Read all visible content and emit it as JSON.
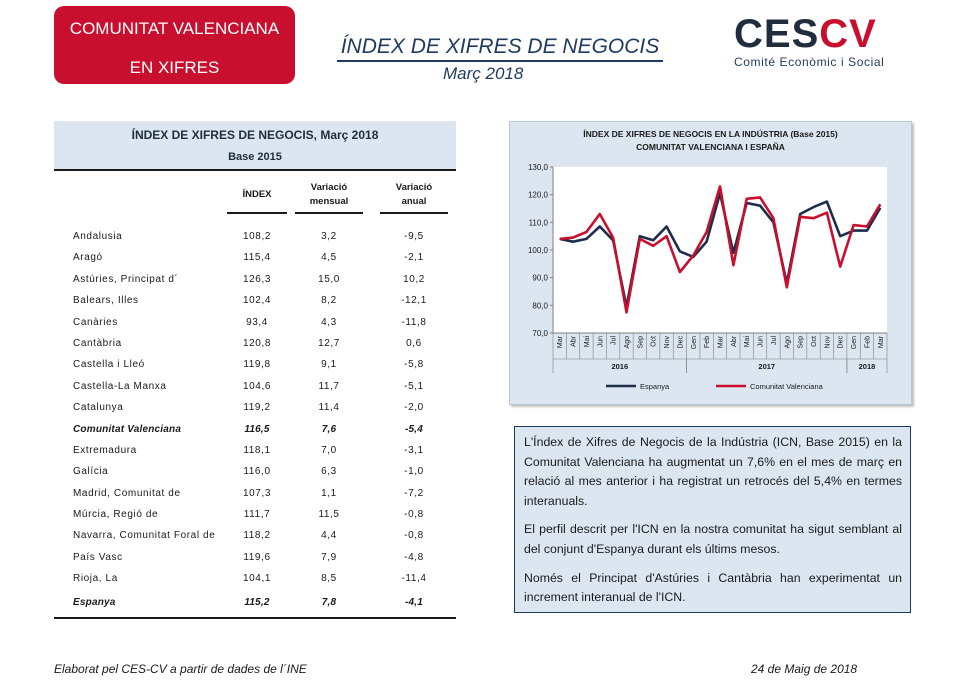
{
  "header": {
    "badge_line1": "COMUNITAT VALENCIANA",
    "badge_line2": "EN XIFRES",
    "title": "ÍNDEX DE XIFRES DE NEGOCIS",
    "subtitle": "Març 2018",
    "logo_ces": "CES",
    "logo_cv": "CV",
    "logo_sub": "Comité Econòmic i Social"
  },
  "table": {
    "title": "ÍNDEX DE XIFRES DE NEGOCIS, Març 2018",
    "base": "Base 2015",
    "col1": "ÍNDEX",
    "col2_a": "Variació",
    "col2_b": "mensual",
    "col3_a": "Variació",
    "col3_b": "anual",
    "rows": [
      {
        "name": "Andalusia",
        "index": "108,2",
        "monthly": "3,2",
        "annual": "-9,5",
        "bold": false
      },
      {
        "name": "Aragó",
        "index": "115,4",
        "monthly": "4,5",
        "annual": "-2,1",
        "bold": false
      },
      {
        "name": "Astúries, Principat d´",
        "index": "126,3",
        "monthly": "15,0",
        "annual": "10,2",
        "bold": false
      },
      {
        "name": "Balears, Illes",
        "index": "102,4",
        "monthly": "8,2",
        "annual": "-12,1",
        "bold": false
      },
      {
        "name": "Canàries",
        "index": "93,4",
        "monthly": "4,3",
        "annual": "-11,8",
        "bold": false
      },
      {
        "name": "Cantàbria",
        "index": "120,8",
        "monthly": "12,7",
        "annual": "0,6",
        "bold": false
      },
      {
        "name": "Castella i Lleó",
        "index": "119,8",
        "monthly": "9,1",
        "annual": "-5,8",
        "bold": false
      },
      {
        "name": "Castella-La Manxa",
        "index": "104,6",
        "monthly": "11,7",
        "annual": "-5,1",
        "bold": false
      },
      {
        "name": "Catalunya",
        "index": "119,2",
        "monthly": "11,4",
        "annual": "-2,0",
        "bold": false
      },
      {
        "name": "Comunitat Valenciana",
        "index": "116,5",
        "monthly": "7,6",
        "annual": "-5,4",
        "bold": true
      },
      {
        "name": "Extremadura",
        "index": "118,1",
        "monthly": "7,0",
        "annual": "-3,1",
        "bold": false
      },
      {
        "name": "Galícia",
        "index": "116,0",
        "monthly": "6,3",
        "annual": "-1,0",
        "bold": false
      },
      {
        "name": "Madrid, Comunitat de",
        "index": "107,3",
        "monthly": "1,1",
        "annual": "-7,2",
        "bold": false
      },
      {
        "name": "Múrcia, Regió de",
        "index": "111,7",
        "monthly": "11,5",
        "annual": "-0,8",
        "bold": false
      },
      {
        "name": "Navarra, Comunitat Foral de",
        "index": "118,2",
        "monthly": "4,4",
        "annual": "-0,8",
        "bold": false
      },
      {
        "name": "País Vasc",
        "index": "119,6",
        "monthly": "7,9",
        "annual": "-4,8",
        "bold": false
      },
      {
        "name": "Rioja, La",
        "index": "104,1",
        "monthly": "8,5",
        "annual": "-11,4",
        "bold": false
      },
      {
        "name": "Espanya",
        "index": "115,2",
        "monthly": "7,8",
        "annual": "-4,1",
        "bold": true
      }
    ]
  },
  "chart_data": {
    "type": "line",
    "title_line1": "ÍNDEX DE XIFRES DE NEGOCIS EN LA INDÚSTRIA (Base 2015)",
    "title_line2": "COMUNITAT VALENCIANA I ESPAÑA",
    "x": [
      "Mar",
      "Abr",
      "Mai",
      "Jun",
      "Jul",
      "Ago",
      "Sep",
      "Oct",
      "Nov",
      "Dec",
      "Gen",
      "Feb",
      "Mar",
      "Abr",
      "Mai",
      "Jun",
      "Jul",
      "Ago",
      "Sep",
      "Oct",
      "Nov",
      "Dec",
      "Gen",
      "Feb",
      "Mar"
    ],
    "year_groups": [
      {
        "label": "2016",
        "start": 0,
        "end": 9
      },
      {
        "label": "2017",
        "start": 10,
        "end": 21
      },
      {
        "label": "2018",
        "start": 22,
        "end": 24
      }
    ],
    "ylim": [
      70,
      130
    ],
    "yticks": [
      "70,0",
      "80,0",
      "90,0",
      "100,0",
      "110,0",
      "120,0",
      "130,0"
    ],
    "ytick_values": [
      70,
      80,
      90,
      100,
      110,
      120,
      130
    ],
    "grid": false,
    "legend_position": "bottom",
    "series": [
      {
        "name": "Espanya",
        "color": "#1f2d4d",
        "values": [
          104.0,
          103.0,
          104.0,
          108.5,
          103.5,
          79.5,
          105.0,
          103.5,
          108.5,
          99.5,
          97.5,
          103.0,
          120.5,
          99.0,
          117.0,
          116.0,
          110.0,
          88.0,
          113.0,
          115.5,
          117.5,
          105.0,
          107.0,
          107.0,
          115.2
        ]
      },
      {
        "name": "Comunitat Valenciana",
        "color": "#c8102e",
        "values": [
          104.0,
          104.5,
          106.5,
          113.0,
          104.5,
          77.5,
          104.0,
          101.5,
          105.0,
          92.0,
          98.0,
          106.5,
          123.0,
          94.5,
          118.5,
          119.0,
          111.5,
          86.5,
          112.0,
          111.5,
          113.5,
          94.0,
          109.0,
          108.5,
          116.5
        ]
      }
    ]
  },
  "note": {
    "p1": "L'Índex de Xifres de Negocis de la Indústria (ICN, Base 2015) en la Comunitat Valenciana ha augmentat un 7,6% en el mes de març en relació al mes anterior i ha registrat un retrocés del 5,4% en termes interanuals.",
    "p2": "El perfil descrit per l'ICN en la nostra comunitat ha sigut semblant al del conjunt d'Espanya durant els últims mesos.",
    "p3": "Només el Principat d'Astúries i Cantàbria han experimentat un increment interanual de l'ICN."
  },
  "footer": {
    "left": "Elaborat pel CES-CV a partir de dades de l´INE",
    "right": "24 de Maig de 2018"
  }
}
